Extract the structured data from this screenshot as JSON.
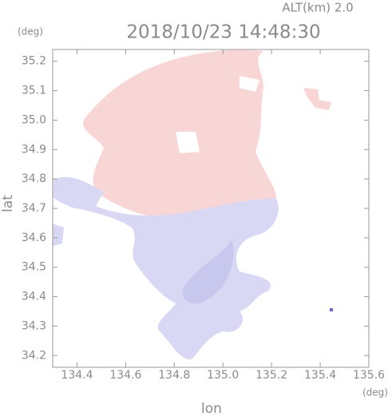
{
  "chart_data": {
    "type": "map",
    "title": "2018/10/23 14:48:30",
    "subtitle": "ALT(km) 2.0",
    "x_label": "lon",
    "y_label": "lat",
    "x_unit": "(deg)",
    "y_unit": "(deg)",
    "xlim": [
      134.3,
      135.6
    ],
    "ylim": [
      34.16,
      35.24
    ],
    "xticks": [
      134.4,
      134.6,
      134.8,
      {
        "value": 135,
        "label": "135.0"
      },
      135.2,
      135.4,
      135.6
    ],
    "yticks": [
      34.2,
      34.3,
      34.4,
      34.5,
      34.6,
      34.7,
      34.8,
      34.9,
      {
        "value": 35,
        "label": "35.0"
      },
      35.1,
      35.2
    ]
  }
}
